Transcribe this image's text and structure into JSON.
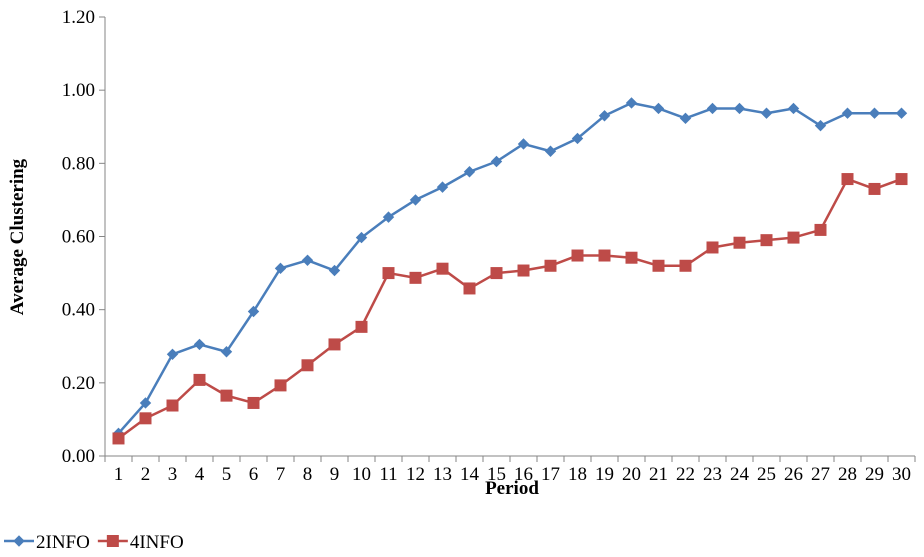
{
  "chart_data": {
    "type": "line",
    "title": "",
    "xlabel": "Period",
    "ylabel": "Average Clustering",
    "ylim": [
      0,
      1.2
    ],
    "yticks": [
      "0.00",
      "0.20",
      "0.40",
      "0.60",
      "0.80",
      "1.00",
      "1.20"
    ],
    "categories": [
      "1",
      "2",
      "3",
      "4",
      "5",
      "6",
      "7",
      "8",
      "9",
      "10",
      "11",
      "12",
      "13",
      "14",
      "15",
      "16",
      "17",
      "18",
      "19",
      "20",
      "21",
      "22",
      "23",
      "24",
      "25",
      "26",
      "27",
      "28",
      "29",
      "30"
    ],
    "legend_position": "bottom-left",
    "grid": false,
    "series": [
      {
        "name": "2INFO",
        "color": "#4a7ebb",
        "marker": "diamond",
        "values": [
          0.062,
          0.145,
          0.278,
          0.305,
          0.285,
          0.395,
          0.513,
          0.535,
          0.507,
          0.597,
          0.653,
          0.7,
          0.735,
          0.777,
          0.805,
          0.853,
          0.833,
          0.868,
          0.93,
          0.965,
          0.95,
          0.923,
          0.95,
          0.95,
          0.937,
          0.95,
          0.903,
          0.937,
          0.937,
          0.937
        ]
      },
      {
        "name": "4INFO",
        "color": "#be4b48",
        "marker": "square",
        "values": [
          0.048,
          0.103,
          0.138,
          0.208,
          0.165,
          0.145,
          0.193,
          0.248,
          0.305,
          0.353,
          0.5,
          0.487,
          0.512,
          0.458,
          0.5,
          0.507,
          0.52,
          0.548,
          0.548,
          0.542,
          0.52,
          0.52,
          0.57,
          0.583,
          0.59,
          0.597,
          0.618,
          0.757,
          0.73,
          0.757
        ]
      }
    ]
  }
}
